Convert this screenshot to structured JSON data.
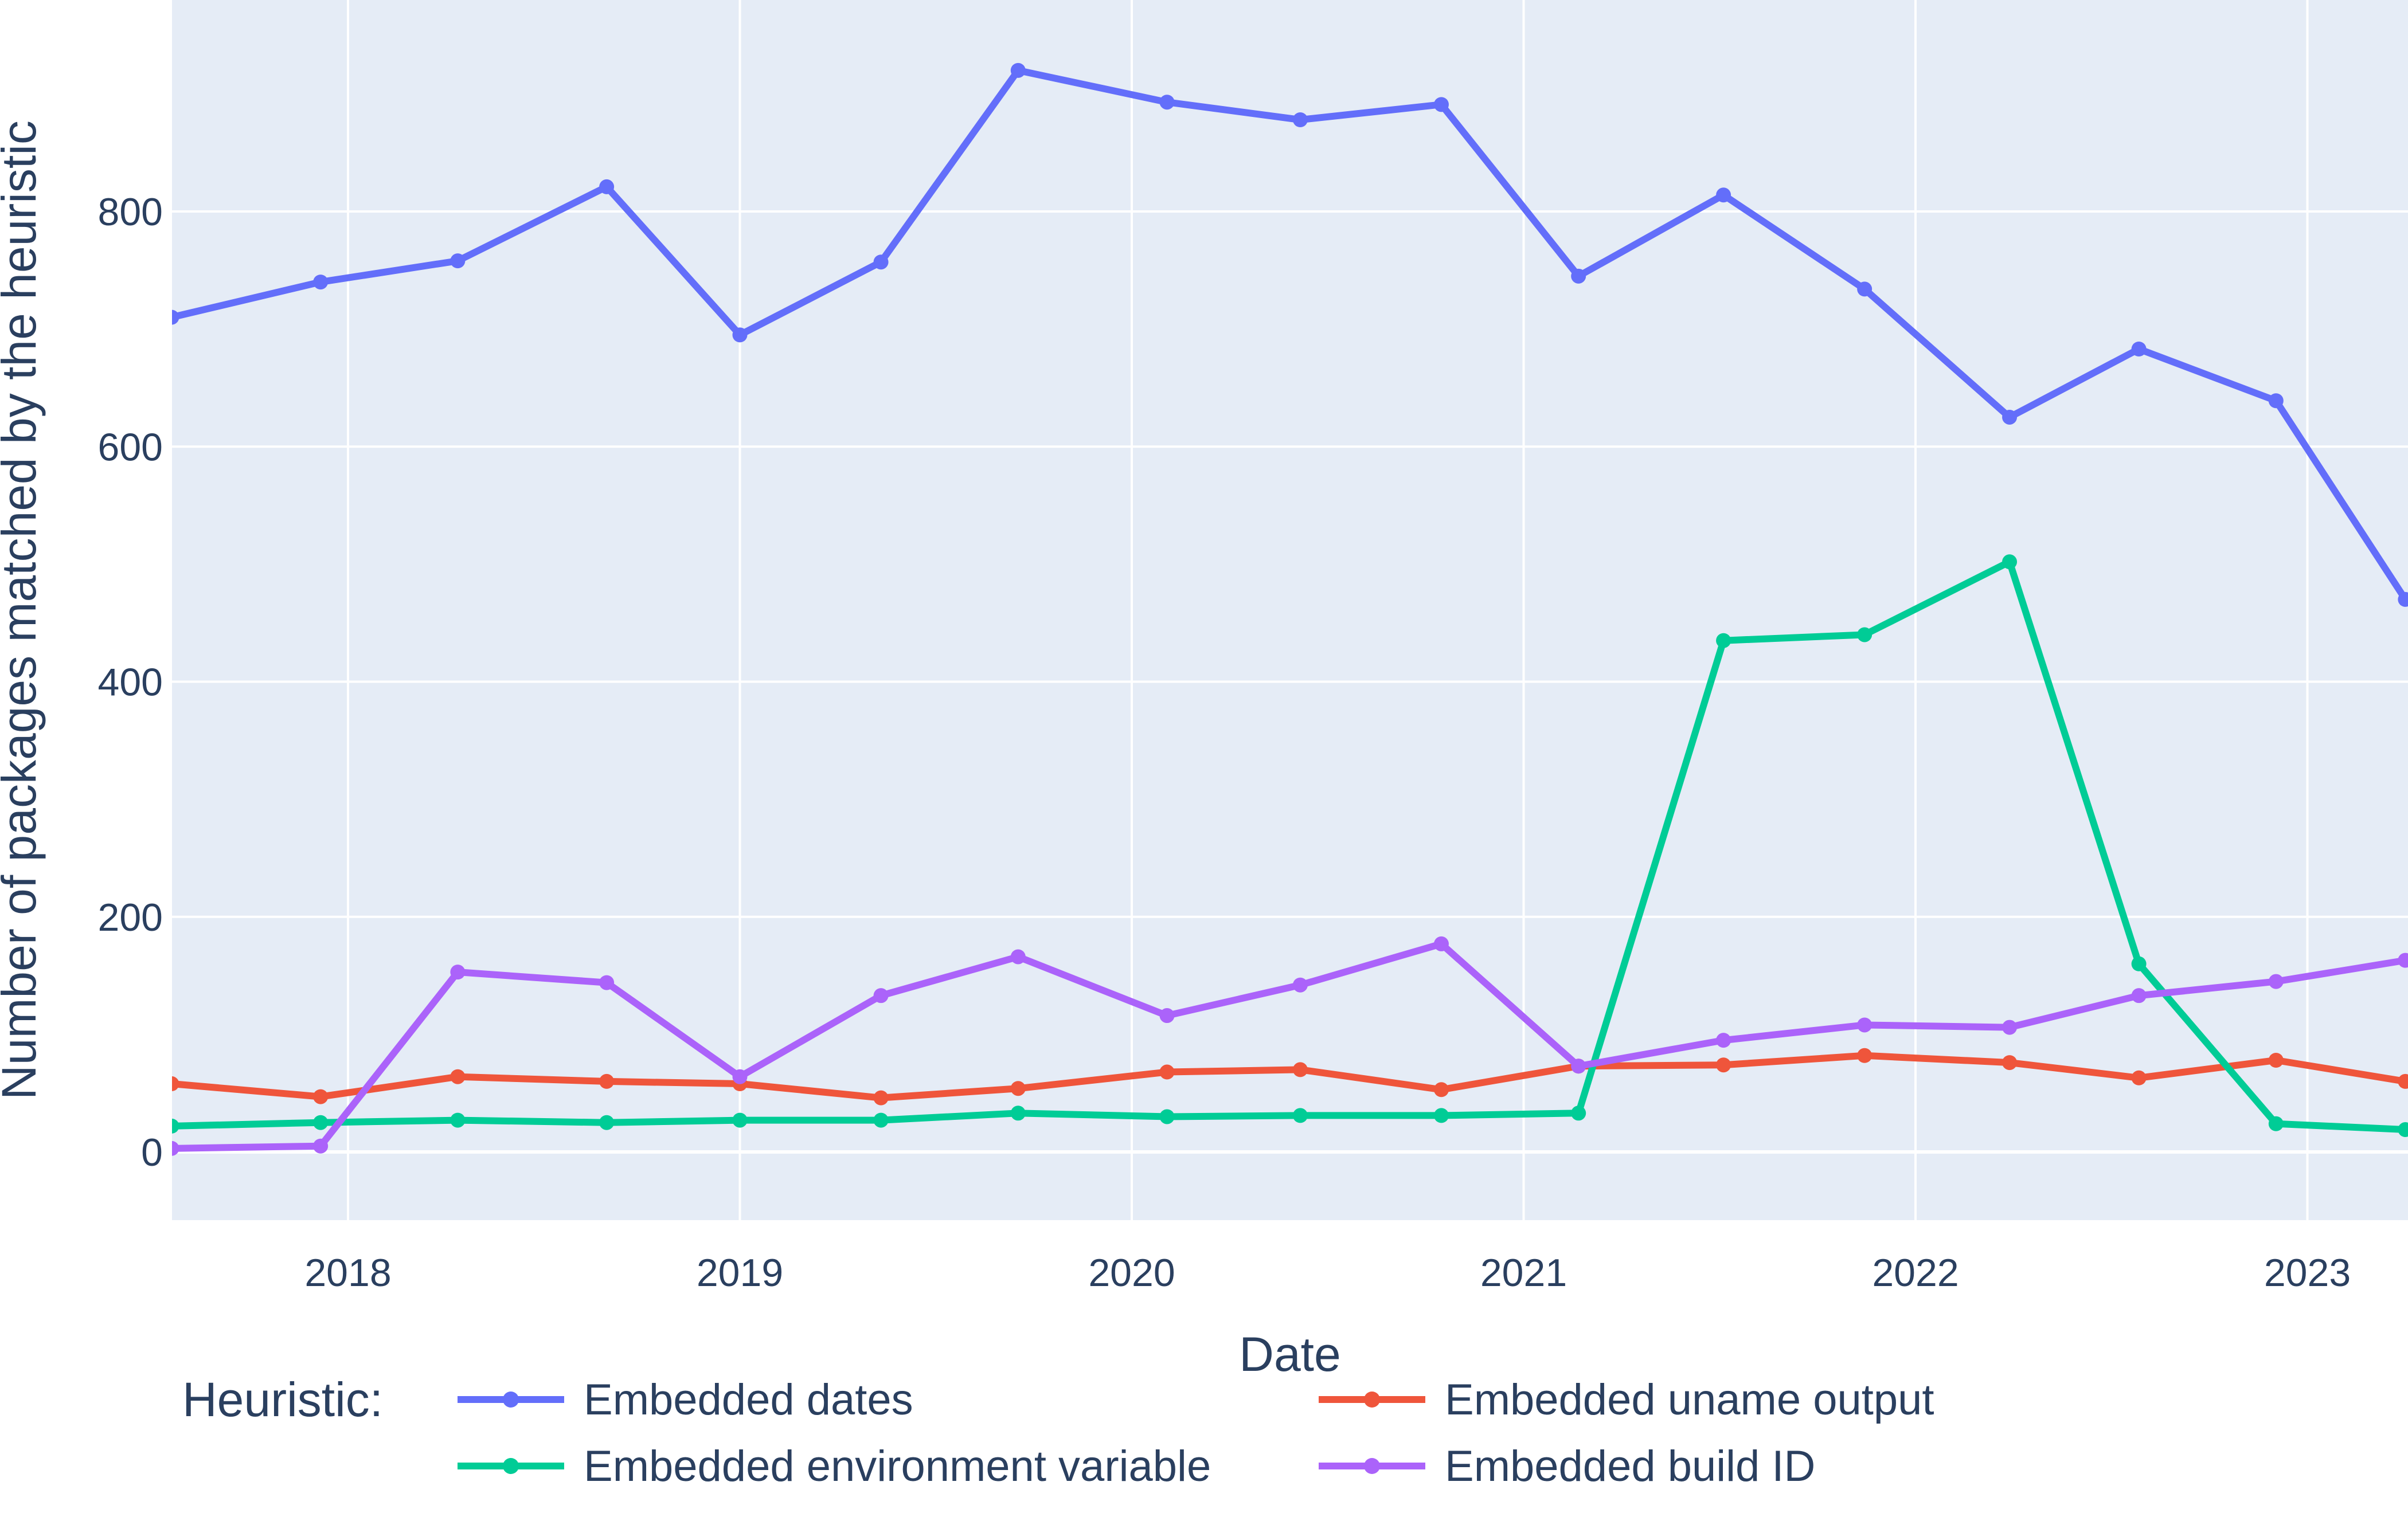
{
  "chart_data": {
    "type": "line",
    "title": "",
    "xlabel": "Date",
    "ylabel": "Number of packages matched by the heuristic",
    "legend_title": "Heuristic:",
    "legend_position": "bottom",
    "grid": true,
    "plot_bg_color": "#E5ECF6",
    "grid_color": "#FFFFFF",
    "text_color": "#2A3F5F",
    "x_tick_labels": [
      "2018",
      "2019",
      "2020",
      "2021",
      "2022",
      "2023"
    ],
    "x_ticks": [
      2018,
      2019,
      2020,
      2021,
      2022,
      2023
    ],
    "y_tick_labels": [
      "0",
      "200",
      "400",
      "600",
      "800"
    ],
    "y_ticks": [
      0,
      200,
      400,
      600,
      800
    ],
    "x_range": [
      2017.55,
      2023.26
    ],
    "y_range": [
      -58,
      980
    ],
    "x": [
      2017.55,
      2017.93,
      2018.28,
      2018.66,
      2019.0,
      2019.36,
      2019.71,
      2020.09,
      2020.43,
      2020.79,
      2021.14,
      2021.51,
      2021.87,
      2022.24,
      2022.57,
      2022.92,
      2023.25
    ],
    "x_dates_approx": [
      "2017-07",
      "2017-12",
      "2018-04",
      "2018-08",
      "2019-01",
      "2019-05",
      "2019-09",
      "2020-02",
      "2020-06",
      "2020-10",
      "2021-02",
      "2021-07",
      "2021-11",
      "2022-03",
      "2022-07",
      "2022-12",
      "2023-04"
    ],
    "series": [
      {
        "name": "Embedded dates",
        "color": "#636EFA",
        "values": [
          710,
          740,
          758,
          821,
          695,
          757,
          920,
          893,
          878,
          891,
          745,
          814,
          734,
          625,
          683,
          639,
          470
        ]
      },
      {
        "name": "Embedded uname output",
        "color": "#EF553B",
        "values": [
          58,
          47,
          64,
          60,
          58,
          46,
          54,
          68,
          70,
          53,
          73,
          74,
          82,
          76,
          63,
          78,
          60
        ]
      },
      {
        "name": "Embedded environment variable",
        "color": "#00CC96",
        "values": [
          22,
          25,
          27,
          25,
          27,
          27,
          33,
          30,
          31,
          31,
          33,
          435,
          440,
          502,
          160,
          24,
          19
        ]
      },
      {
        "name": "Embedded build ID",
        "color": "#AB63FA",
        "values": [
          3,
          5,
          153,
          144,
          64,
          133,
          166,
          116,
          142,
          177,
          73,
          95,
          108,
          106,
          133,
          145,
          163
        ]
      }
    ]
  }
}
